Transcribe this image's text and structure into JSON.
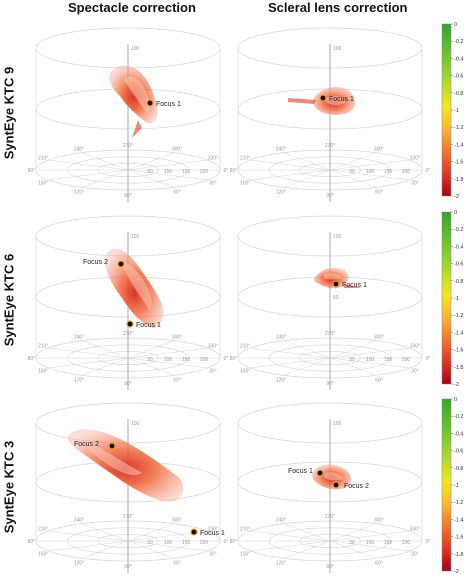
{
  "column_titles": [
    "Spectacle correction",
    "Scleral lens correction"
  ],
  "row_labels": [
    "SyntEye KTC 9",
    "SyntEye KTC 6",
    "SyntEye KTC 3"
  ],
  "colors": {
    "grid": "#d6d6d6",
    "axis": "#b8b8b8",
    "tick_text": "#9a9a9a",
    "marker": "#111111",
    "colormap": [
      "#a8001c",
      "#d9281e",
      "#f0602a",
      "#fbb12b",
      "#f5e818",
      "#9ad62d",
      "#2fa82b"
    ]
  },
  "chart_data": [
    {
      "type": "scatter",
      "title": "Spectacle correction",
      "row": "SyntEye KTC 9",
      "plot_kind": "3d-cylindrical",
      "vertical_axis": {
        "ticks": [
          "100",
          "50"
        ]
      },
      "angle_ticks": [
        "0°",
        "30°",
        "60°",
        "90°",
        "120°",
        "150°",
        "180°",
        "210°",
        "240°",
        "270°",
        "300°",
        "330°"
      ],
      "radial_ticks": [
        "50",
        "100",
        "150",
        "200"
      ],
      "annotations": [
        {
          "label": "Focus 1"
        }
      ],
      "grid": true
    },
    {
      "type": "scatter",
      "title": "Scleral lens correction",
      "row": "SyntEye KTC 9",
      "plot_kind": "3d-cylindrical",
      "vertical_axis": {
        "ticks": [
          "100",
          "50"
        ]
      },
      "angle_ticks": [
        "0°",
        "30°",
        "60°",
        "90°",
        "120°",
        "150°",
        "180°",
        "210°",
        "240°",
        "270°",
        "300°",
        "330°"
      ],
      "radial_ticks": [
        "50",
        "100",
        "150",
        "200"
      ],
      "annotations": [
        {
          "label": "Focus 1"
        }
      ],
      "grid": true
    },
    {
      "type": "scatter",
      "title": "Spectacle correction",
      "row": "SyntEye KTC 6",
      "plot_kind": "3d-cylindrical",
      "vertical_axis": {
        "ticks": [
          "100",
          "50"
        ]
      },
      "angle_ticks": [
        "0°",
        "30°",
        "60°",
        "90°",
        "120°",
        "150°",
        "180°",
        "210°",
        "240°",
        "270°",
        "300°",
        "330°"
      ],
      "radial_ticks": [
        "50",
        "100",
        "150",
        "200"
      ],
      "annotations": [
        {
          "label": "Focus 2"
        },
        {
          "label": "Focus 1"
        }
      ],
      "grid": true
    },
    {
      "type": "scatter",
      "title": "Scleral lens correction",
      "row": "SyntEye KTC 6",
      "plot_kind": "3d-cylindrical",
      "vertical_axis": {
        "ticks": [
          "100",
          "50"
        ]
      },
      "angle_ticks": [
        "0°",
        "30°",
        "60°",
        "90°",
        "120°",
        "150°",
        "180°",
        "210°",
        "240°",
        "270°",
        "300°",
        "330°"
      ],
      "radial_ticks": [
        "50",
        "100",
        "150",
        "200"
      ],
      "annotations": [
        {
          "label": "Focus 1"
        }
      ],
      "grid": true
    },
    {
      "type": "scatter",
      "title": "Spectacle correction",
      "row": "SyntEye KTC 3",
      "plot_kind": "3d-cylindrical",
      "vertical_axis": {
        "ticks": [
          "100",
          "50"
        ]
      },
      "angle_ticks": [
        "0°",
        "30°",
        "60°",
        "90°",
        "120°",
        "150°",
        "180°",
        "210°",
        "240°",
        "270°",
        "300°",
        "330°"
      ],
      "radial_ticks": [
        "50",
        "100",
        "150",
        "200"
      ],
      "annotations": [
        {
          "label": "Focus 2"
        },
        {
          "label": "Focus 1"
        }
      ],
      "grid": true
    },
    {
      "type": "scatter",
      "title": "Scleral lens correction",
      "row": "SyntEye KTC 3",
      "plot_kind": "3d-cylindrical",
      "vertical_axis": {
        "ticks": [
          "100",
          "50"
        ]
      },
      "angle_ticks": [
        "0°",
        "30°",
        "60°",
        "90°",
        "120°",
        "150°",
        "180°",
        "210°",
        "240°",
        "270°",
        "300°",
        "330°"
      ],
      "radial_ticks": [
        "50",
        "100",
        "150",
        "200"
      ],
      "annotations": [
        {
          "label": "Focus 1"
        },
        {
          "label": "Focus 2"
        }
      ],
      "grid": true
    }
  ],
  "colorbars": [
    {
      "ticks": [
        "0",
        "-0.2",
        "-0.4",
        "-0.6",
        "-0.8",
        "-1",
        "-1.2",
        "-1.4",
        "-1.6",
        "-1.8",
        "-2"
      ],
      "range": [
        -2,
        0
      ]
    },
    {
      "ticks": [
        "0",
        "-0.2",
        "-0.4",
        "-0.6",
        "-0.8",
        "-1",
        "-1.2",
        "-1.4",
        "-1.6",
        "-1.8",
        "-2"
      ],
      "range": [
        -2,
        0
      ]
    },
    {
      "ticks": [
        "0",
        "-0.2",
        "-0.4",
        "-0.6",
        "-0.8",
        "-1",
        "-1.2",
        "-1.4",
        "-1.6",
        "-1.8",
        "-2"
      ],
      "range": [
        -2,
        0
      ]
    }
  ]
}
